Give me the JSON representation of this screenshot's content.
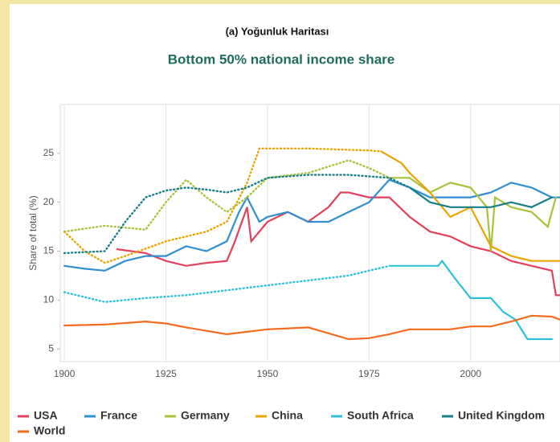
{
  "chart_data": {
    "type": "line",
    "title": "(a) Yoğunluk Haritası",
    "subtitle": "Bottom 50% national income share",
    "y_label": "Share of total (%)",
    "xlim": [
      1899,
      2022
    ],
    "ylim": [
      3.7,
      30
    ],
    "xticks": [
      1900,
      1925,
      1950,
      1975,
      2000
    ],
    "yticks": [
      5,
      10,
      15,
      20,
      25
    ],
    "grid": "x",
    "legend": "bottom",
    "series": [
      {
        "name": "USA",
        "color": "#e2405c",
        "dotted_before": 1913,
        "x": [
          1913,
          1920,
          1925,
          1930,
          1935,
          1940,
          1942,
          1945,
          1946,
          1950,
          1955,
          1960,
          1965,
          1968,
          1970,
          1975,
          1980,
          1985,
          1990,
          1995,
          2000,
          2005,
          2010,
          2015,
          2020,
          2021,
          2022
        ],
        "values": [
          15.2,
          14.8,
          14,
          13.5,
          13.8,
          14,
          16,
          19.5,
          16,
          18,
          19,
          18,
          19.5,
          21,
          21,
          20.5,
          20.5,
          18.5,
          17,
          16.5,
          15.5,
          15,
          14,
          13.5,
          13,
          10.5,
          10.5
        ]
      },
      {
        "name": "France",
        "color": "#2f8fd0",
        "dotted_before": 1900,
        "x": [
          1900,
          1905,
          1910,
          1915,
          1920,
          1925,
          1930,
          1935,
          1940,
          1943,
          1945,
          1948,
          1950,
          1955,
          1960,
          1965,
          1970,
          1975,
          1980,
          1985,
          1990,
          1995,
          2000,
          2005,
          2010,
          2015,
          2020,
          2022
        ],
        "values": [
          13.5,
          13.2,
          13,
          14,
          14.5,
          14.5,
          15.5,
          15,
          16,
          19,
          20.5,
          18,
          18.5,
          19,
          18,
          18,
          19,
          20,
          22.3,
          21.5,
          20.5,
          20.5,
          20.5,
          21,
          22,
          21.5,
          20.5,
          20.5
        ]
      },
      {
        "name": "Germany",
        "color": "#a8c23a",
        "dotted_before": 1980,
        "x": [
          1900,
          1910,
          1920,
          1925,
          1930,
          1935,
          1940,
          1945,
          1950,
          1960,
          1970,
          1975,
          1980,
          1985,
          1990,
          1995,
          2000,
          2004,
          2005,
          2006,
          2010,
          2015,
          2019,
          2021
        ],
        "values": [
          17,
          17.6,
          17.2,
          20,
          22.3,
          20.5,
          19,
          20.5,
          22.5,
          23,
          24.3,
          23.5,
          22.5,
          22.5,
          21,
          22,
          21.5,
          19.5,
          15,
          20.5,
          19.5,
          19,
          17.5,
          20.5
        ]
      },
      {
        "name": "China",
        "color": "#eaa400",
        "dotted_before": 1978,
        "x": [
          1900,
          1905,
          1910,
          1915,
          1925,
          1935,
          1940,
          1945,
          1948,
          1960,
          1975,
          1978,
          1983,
          1985,
          1990,
          1995,
          2000,
          2005,
          2010,
          2015,
          2022
        ],
        "values": [
          17,
          15,
          13.8,
          14.5,
          16,
          17,
          18,
          22,
          25.5,
          25.5,
          25.3,
          25.2,
          24,
          23,
          21,
          18.5,
          19.5,
          15.5,
          14.5,
          14,
          14
        ]
      },
      {
        "name": "South Africa",
        "color": "#2cc2d8",
        "dotted_before": 1980,
        "x": [
          1900,
          1910,
          1920,
          1930,
          1940,
          1950,
          1960,
          1970,
          1975,
          1980,
          1992,
          1993,
          1996,
          2000,
          2005,
          2008,
          2011,
          2014,
          2020
        ],
        "values": [
          10.8,
          9.8,
          10.2,
          10.5,
          11,
          11.5,
          12,
          12.5,
          13,
          13.5,
          13.5,
          14,
          12.3,
          10.2,
          10.2,
          8.8,
          8,
          6,
          6
        ]
      },
      {
        "name": "United Kingdom",
        "color": "#157f8a",
        "dotted_before": 1985,
        "x": [
          1900,
          1910,
          1915,
          1920,
          1925,
          1930,
          1935,
          1940,
          1945,
          1950,
          1960,
          1970,
          1980,
          1985,
          1990,
          1995,
          2000,
          2005,
          2010,
          2015,
          2020
        ],
        "values": [
          14.8,
          15,
          18,
          20.5,
          21.2,
          21.5,
          21.3,
          21,
          21.5,
          22.5,
          22.8,
          22.8,
          22.5,
          21.5,
          20,
          19.5,
          19.5,
          19.5,
          20,
          19.5,
          20.5
        ]
      },
      {
        "name": "World",
        "color": "#f26b1e",
        "dotted_before": 1900,
        "x": [
          1900,
          1910,
          1920,
          1925,
          1930,
          1940,
          1950,
          1960,
          1965,
          1970,
          1975,
          1980,
          1985,
          1990,
          1995,
          2000,
          2005,
          2010,
          2015,
          2020,
          2022
        ],
        "values": [
          7.4,
          7.5,
          7.8,
          7.6,
          7.2,
          6.5,
          7,
          7.2,
          6.6,
          6,
          6.1,
          6.5,
          7,
          7,
          7,
          7.3,
          7.3,
          7.8,
          8.4,
          8.3,
          8
        ]
      }
    ]
  }
}
